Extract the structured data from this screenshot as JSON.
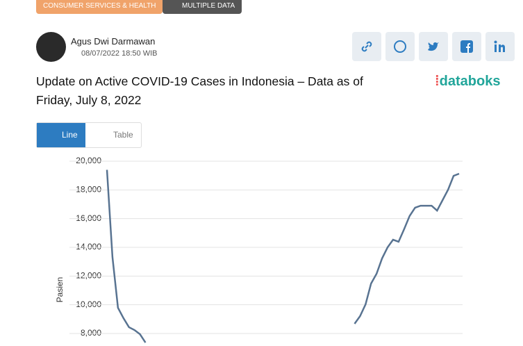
{
  "tags": [
    "CONSUMER SERVICES & HEALTH",
    "MULTIPLE DATA"
  ],
  "author": {
    "name": "Agus Dwi Darmawan",
    "date": "08/07/2022 18:50 WIB"
  },
  "logo": "databoks",
  "tabs": [
    "Line",
    "Table"
  ],
  "chart_data": {
    "type": "line",
    "title": "Update on Active COVID-19 Cases in Indonesia – Data as of Friday, July 8, 2022",
    "y_label": "Pasien",
    "color": "#587391",
    "grid": true,
    "ylim": [
      7130,
      20000
    ],
    "yticks": [
      {
        "value": 8000,
        "label": "8,000"
      },
      {
        "value": 10000,
        "label": "10,000"
      },
      {
        "value": 12000,
        "label": "12,000"
      },
      {
        "value": 14000,
        "label": "14,000"
      },
      {
        "value": 16000,
        "label": "16,000"
      },
      {
        "value": 18000,
        "label": "18,000"
      },
      {
        "value": 20000,
        "label": "20,000"
      }
    ],
    "values": [
      19400,
      13320,
      9790,
      9070,
      8440,
      8240,
      7950,
      7370,
      null,
      null,
      null,
      null,
      null,
      null,
      null,
      null,
      null,
      null,
      null,
      null,
      null,
      null,
      null,
      null,
      null,
      null,
      null,
      null,
      null,
      null,
      null,
      null,
      null,
      null,
      null,
      null,
      null,
      null,
      null,
      null,
      null,
      null,
      null,
      null,
      null,
      8680,
      9210,
      10030,
      11480,
      12160,
      13230,
      14000,
      14530,
      14390,
      15260,
      16180,
      16760,
      16900,
      16900,
      16900,
      16560,
      17290,
      18020,
      18980,
      19130
    ]
  }
}
